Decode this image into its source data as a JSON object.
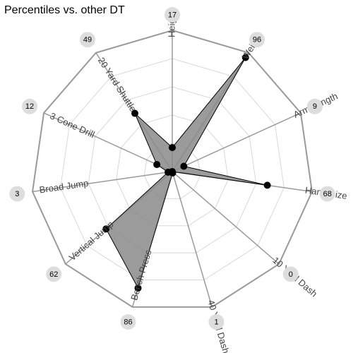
{
  "chart_data": {
    "type": "radar",
    "title": "Percentiles vs. other DT",
    "rlim": [
      0,
      100
    ],
    "grid": true,
    "axes": [
      {
        "label": "Height",
        "value": 17
      },
      {
        "label": "Weight",
        "value": 96
      },
      {
        "label": "Arm Length",
        "value": 9
      },
      {
        "label": "Hand Size",
        "value": 68
      },
      {
        "label": "10 Yard Dash",
        "value": 0
      },
      {
        "label": "40 Yard Dash",
        "value": 1
      },
      {
        "label": "Bench Press",
        "value": 86
      },
      {
        "label": "Vertical Jump",
        "value": 62
      },
      {
        "label": "Broad Jump",
        "value": 3
      },
      {
        "label": "3 Cone Drill",
        "value": 12
      },
      {
        "label": "20 Yard Shuttle",
        "value": 49
      }
    ]
  }
}
